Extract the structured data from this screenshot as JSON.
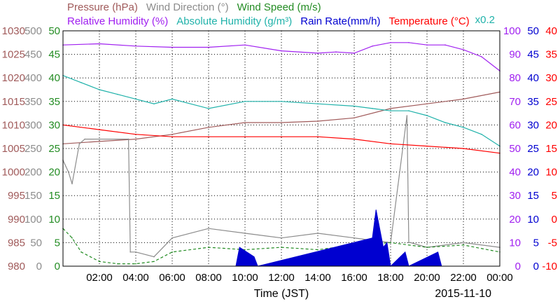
{
  "legend": {
    "row1": [
      {
        "label": "Pressure (hPa)",
        "color": "#a05a5a"
      },
      {
        "label": "Wind Direction (°)",
        "color": "#8c8c8c"
      },
      {
        "label": "Wind Speed (m/s)",
        "color": "#238c23"
      }
    ],
    "row2": [
      {
        "label": "Relative Humidity (%)",
        "color": "#a020f0"
      },
      {
        "label": "Absolute Humidity (g/m³)",
        "color": "#20b2aa"
      },
      {
        "label": "Rain Rate(mm/h)",
        "color": "#0000d0"
      },
      {
        "label": "Temperature (°C)",
        "color": "#ff0000"
      }
    ],
    "scale_note": "x0.2",
    "scale_note_color": "#20b2aa"
  },
  "axes": {
    "pressure_ticks": [
      "1030",
      "1025",
      "1020",
      "1015",
      "1010",
      "1005",
      "1000",
      "995",
      "990",
      "985",
      "980"
    ],
    "wind_dir_ticks": [
      "500",
      "450",
      "400",
      "350",
      "300",
      "250",
      "200",
      "150",
      "100",
      "50",
      "0"
    ],
    "wind_speed_ticks": [
      "50",
      "45",
      "40",
      "35",
      "30",
      "25",
      "20",
      "15",
      "10",
      "5",
      "0"
    ],
    "humidity_ticks": [
      "100",
      "90",
      "80",
      "70",
      "60",
      "50",
      "40",
      "30",
      "20",
      "10",
      "0"
    ],
    "rain_ticks": [
      "50",
      "45",
      "40",
      "35",
      "30",
      "25",
      "20",
      "15",
      "10",
      "5",
      "0"
    ],
    "temp_ticks": [
      "40",
      "35",
      "30",
      "25",
      "20",
      "15",
      "10",
      "5",
      "0",
      "-5",
      "-10"
    ],
    "x_ticks": [
      "02:00",
      "04:00",
      "06:00",
      "08:00",
      "10:00",
      "12:00",
      "14:00",
      "16:00",
      "18:00",
      "20:00",
      "22:00",
      "00:00"
    ],
    "x_title": "Time (JST)",
    "date_label": "2015-11-10"
  },
  "colors": {
    "pressure": "#a05a5a",
    "wind_dir": "#8c8c8c",
    "wind_speed": "#238c23",
    "rel_humidity": "#a020f0",
    "abs_humidity": "#20b2aa",
    "rain": "#0000d0",
    "temperature": "#ff0000",
    "grid": "#000000"
  },
  "chart_data": {
    "type": "line",
    "x_unit": "hours (JST, 2015-11-10)",
    "xlim": [
      0,
      24
    ],
    "grid": true,
    "series": [
      {
        "name": "Pressure (hPa)",
        "axis": "pressure",
        "ylim": [
          980,
          1030
        ],
        "x": [
          0,
          2,
          4,
          6,
          8,
          10,
          12,
          14,
          16,
          18,
          20,
          22,
          24
        ],
        "values": [
          1006,
          1006.5,
          1007,
          1008,
          1009.5,
          1010.5,
          1010.5,
          1010.8,
          1011.5,
          1013.5,
          1014.5,
          1015.5,
          1017
        ]
      },
      {
        "name": "Wind Direction (°)",
        "axis": "wind_dir",
        "ylim": [
          0,
          500
        ],
        "x": [
          0,
          0.3,
          0.5,
          0.9,
          1.2,
          2,
          3.6,
          3.7,
          4,
          5,
          6,
          8,
          10,
          12,
          14,
          16,
          18,
          18.9,
          19,
          19.1,
          20,
          22,
          24
        ],
        "values": [
          225,
          200,
          175,
          260,
          270,
          270,
          270,
          30,
          30,
          20,
          60,
          80,
          70,
          60,
          70,
          60,
          50,
          320,
          50,
          50,
          40,
          50,
          40
        ]
      },
      {
        "name": "Wind Speed (m/s)",
        "axis": "wind_speed",
        "ylim": [
          0,
          50
        ],
        "x": [
          0,
          0.5,
          1,
          2,
          3,
          4,
          5,
          6,
          8,
          10,
          12,
          14,
          16,
          18,
          20,
          22,
          24
        ],
        "values": [
          8,
          6,
          3,
          1,
          0.5,
          0.5,
          1,
          3,
          4,
          3.5,
          4,
          3.5,
          4.5,
          5,
          4,
          4.5,
          3
        ]
      },
      {
        "name": "Relative Humidity (%)",
        "axis": "humidity",
        "ylim": [
          0,
          100
        ],
        "x": [
          0,
          2,
          4,
          6,
          8,
          10,
          12,
          14,
          15,
          16,
          17,
          18,
          19,
          20,
          21,
          22,
          23,
          24
        ],
        "values": [
          94,
          94.5,
          93.5,
          93,
          93,
          94,
          91.5,
          90.5,
          91,
          90.5,
          93.5,
          95,
          95,
          94,
          94,
          92,
          89,
          83
        ]
      },
      {
        "name": "Absolute Humidity (g/m³)",
        "axis": "humidity",
        "scale": "x0.2",
        "ylim": [
          0,
          100
        ],
        "x": [
          0,
          1,
          2,
          3,
          4,
          5,
          6,
          8,
          10,
          12,
          14,
          16,
          17,
          18,
          19,
          20,
          21,
          22,
          23,
          24
        ],
        "values": [
          81,
          78,
          75,
          73,
          71,
          69,
          71,
          67,
          70,
          70,
          69,
          68,
          67,
          66,
          66,
          64,
          61,
          59,
          56,
          51
        ]
      },
      {
        "name": "Rain Rate(mm/h)",
        "axis": "rain",
        "ylim": [
          0,
          50
        ],
        "x": [
          9.5,
          9.7,
          10.5,
          10.7,
          17,
          17.2,
          17.4,
          17.6,
          17.8,
          18,
          18.8,
          19.0,
          20.6,
          20.8
        ],
        "values": [
          0,
          4,
          2,
          0,
          6,
          12,
          8,
          4,
          5,
          0,
          3,
          0,
          3,
          0
        ]
      },
      {
        "name": "Temperature (°C)",
        "axis": "temperature",
        "ylim": [
          -10,
          40
        ],
        "x": [
          0,
          2,
          4,
          6,
          8,
          10,
          12,
          14,
          16,
          18,
          20,
          22,
          24
        ],
        "values": [
          20,
          19,
          18,
          17.5,
          17.5,
          17.5,
          17.5,
          17.5,
          17,
          16,
          15.5,
          15,
          14
        ]
      }
    ]
  }
}
